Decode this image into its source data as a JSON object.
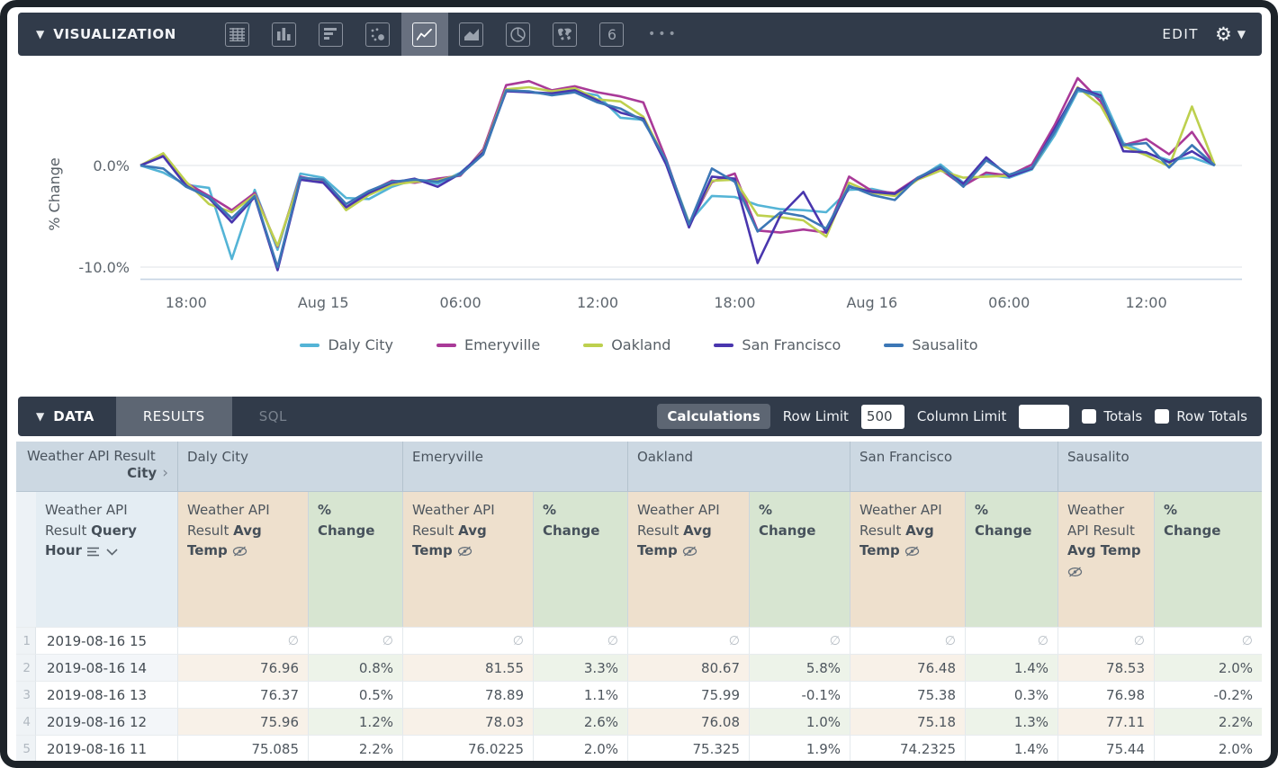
{
  "visualization_bar": {
    "title": "VISUALIZATION",
    "edit_label": "EDIT",
    "more_label": "•••",
    "chart_types": [
      "table",
      "bar",
      "column",
      "scatter",
      "line",
      "area",
      "pie",
      "map",
      "single-value"
    ],
    "selected_chart_type": "line",
    "single_value_icon_text": "6"
  },
  "chart_data": {
    "type": "line",
    "title": "",
    "ylabel": "% Change",
    "ylim": [
      -12,
      10
    ],
    "grid": "horizontal",
    "legend_position": "bottom",
    "y_ticks": [
      {
        "label": "0.0%",
        "value": 0
      },
      {
        "label": "-10.0%",
        "value": -10
      }
    ],
    "x_ticks": [
      {
        "label": "18:00",
        "i": 2
      },
      {
        "label": "Aug 15",
        "i": 8
      },
      {
        "label": "06:00",
        "i": 14
      },
      {
        "label": "12:00",
        "i": 20
      },
      {
        "label": "18:00",
        "i": 26
      },
      {
        "label": "Aug 16",
        "i": 32
      },
      {
        "label": "06:00",
        "i": 38
      },
      {
        "label": "12:00",
        "i": 44
      }
    ],
    "x_description": "Hourly points from Aug 14 16:00 to Aug 16 15:00, % change of Avg Temp",
    "series": [
      {
        "name": "Daly City",
        "color": "#54b4d6",
        "values": [
          0.0,
          -0.7,
          -1.9,
          -2.2,
          -9.2,
          -2.4,
          -8.3,
          -0.8,
          -1.2,
          -3.2,
          -3.3,
          -2.1,
          -1.4,
          -1.8,
          -0.7,
          1.2,
          7.4,
          7.2,
          7.0,
          7.3,
          6.9,
          4.7,
          4.5,
          0.4,
          -5.6,
          -3.0,
          -3.1,
          -3.9,
          -4.3,
          -4.4,
          -4.6,
          -2.4,
          -2.3,
          -2.8,
          -1.3,
          0.1,
          -1.7,
          -0.9,
          -1.2,
          -0.4,
          3.0,
          7.3,
          7.2,
          2.2,
          1.2,
          0.5,
          0.8,
          0.0
        ]
      },
      {
        "name": "Emeryville",
        "color": "#a93a98",
        "values": [
          0.0,
          1.1,
          -1.7,
          -3.0,
          -4.4,
          -2.7,
          -8.0,
          -1.1,
          -1.6,
          -4.3,
          -2.6,
          -1.5,
          -1.7,
          -1.3,
          -1.0,
          1.6,
          7.9,
          8.3,
          7.4,
          7.8,
          7.2,
          6.8,
          6.2,
          0.6,
          -5.9,
          -1.6,
          -0.8,
          -6.4,
          -6.6,
          -6.3,
          -6.6,
          -1.1,
          -2.5,
          -2.7,
          -1.2,
          -0.4,
          -2.0,
          -0.7,
          -1.0,
          0.1,
          4.0,
          8.6,
          6.3,
          2.0,
          2.6,
          1.1,
          3.3,
          0.0
        ]
      },
      {
        "name": "Oakland",
        "color": "#bdd04e",
        "values": [
          0.0,
          1.2,
          -1.6,
          -3.8,
          -4.6,
          -2.9,
          -7.9,
          -1.3,
          -1.4,
          -4.4,
          -2.9,
          -1.9,
          -1.6,
          -1.5,
          -0.9,
          1.4,
          7.5,
          7.7,
          7.3,
          7.6,
          6.5,
          6.3,
          4.8,
          0.4,
          -5.7,
          -1.5,
          -1.4,
          -4.9,
          -5.1,
          -5.4,
          -7.0,
          -1.7,
          -2.7,
          -3.0,
          -1.4,
          -0.5,
          -1.2,
          -1.1,
          -1.0,
          -0.3,
          3.4,
          7.7,
          5.9,
          1.9,
          1.0,
          -0.1,
          5.8,
          0.0
        ]
      },
      {
        "name": "San Francisco",
        "color": "#4936ae",
        "values": [
          0.0,
          0.9,
          -2.0,
          -3.2,
          -5.6,
          -3.1,
          -10.3,
          -1.4,
          -1.7,
          -4.1,
          -2.7,
          -1.7,
          -1.3,
          -2.1,
          -0.8,
          1.3,
          7.3,
          7.2,
          7.1,
          7.4,
          6.4,
          5.2,
          4.6,
          0.1,
          -6.1,
          -1.1,
          -1.3,
          -9.6,
          -4.9,
          -2.6,
          -6.6,
          -2.1,
          -2.6,
          -2.8,
          -1.3,
          -0.2,
          -1.8,
          0.8,
          -1.1,
          -0.3,
          3.6,
          7.6,
          6.9,
          1.4,
          1.3,
          0.3,
          1.4,
          0.0
        ]
      },
      {
        "name": "Sausalito",
        "color": "#3c77b6",
        "values": [
          0.0,
          -0.3,
          -2.1,
          -3.1,
          -5.2,
          -3.0,
          -10.0,
          -1.2,
          -1.4,
          -3.8,
          -2.5,
          -1.6,
          -1.4,
          -1.6,
          -0.9,
          1.1,
          7.4,
          7.3,
          6.9,
          7.2,
          6.2,
          5.6,
          4.4,
          0.5,
          -5.8,
          -0.3,
          -1.6,
          -6.5,
          -4.6,
          -5.0,
          -6.2,
          -2.0,
          -2.9,
          -3.4,
          -1.2,
          -0.1,
          -2.1,
          0.5,
          -0.9,
          -0.2,
          3.3,
          7.5,
          6.7,
          2.0,
          2.2,
          -0.2,
          2.0,
          0.0
        ]
      }
    ]
  },
  "data_bar": {
    "title": "DATA",
    "tabs": [
      {
        "label": "RESULTS",
        "active": true
      },
      {
        "label": "SQL",
        "active": false
      }
    ],
    "calculations_label": "Calculations",
    "row_limit_label": "Row Limit",
    "row_limit_value": "500",
    "column_limit_label": "Column Limit",
    "column_limit_value": "",
    "totals_label": "Totals",
    "row_totals_label": "Row Totals",
    "totals_checked": false,
    "row_totals_checked": false
  },
  "table": {
    "pivot_field_prefix": "Weather API Result",
    "pivot_field_name": "City",
    "dimension_prefix": "Weather API Result",
    "dimension_name": "Query Hour",
    "measure_prefix": "Weather API Result",
    "measure_name": "Avg Temp",
    "pct_line1": "%",
    "pct_line2": "Change",
    "null_symbol": "∅",
    "cities": [
      {
        "name": "Daly City"
      },
      {
        "name": "Emeryville"
      },
      {
        "name": "Oakland"
      },
      {
        "name": "San Francisco"
      },
      {
        "name": "Sausalito"
      }
    ],
    "rows": [
      {
        "n": "1",
        "hour": "2019-08-16 15",
        "vals": [
          "∅",
          "∅",
          "∅",
          "∅",
          "∅",
          "∅",
          "∅",
          "∅",
          "∅",
          "∅"
        ]
      },
      {
        "n": "2",
        "hour": "2019-08-16 14",
        "vals": [
          "76.96",
          "0.8%",
          "81.55",
          "3.3%",
          "80.67",
          "5.8%",
          "76.48",
          "1.4%",
          "78.53",
          "2.0%"
        ]
      },
      {
        "n": "3",
        "hour": "2019-08-16 13",
        "vals": [
          "76.37",
          "0.5%",
          "78.89",
          "1.1%",
          "75.99",
          "-0.1%",
          "75.38",
          "0.3%",
          "76.98",
          "-0.2%"
        ]
      },
      {
        "n": "4",
        "hour": "2019-08-16 12",
        "vals": [
          "75.96",
          "1.2%",
          "78.03",
          "2.6%",
          "76.08",
          "1.0%",
          "75.18",
          "1.3%",
          "77.11",
          "2.2%"
        ]
      },
      {
        "n": "5",
        "hour": "2019-08-16 11",
        "vals": [
          "75.085",
          "2.2%",
          "76.0225",
          "2.0%",
          "75.325",
          "1.9%",
          "74.2325",
          "1.4%",
          "75.44",
          "2.0%"
        ]
      }
    ]
  }
}
